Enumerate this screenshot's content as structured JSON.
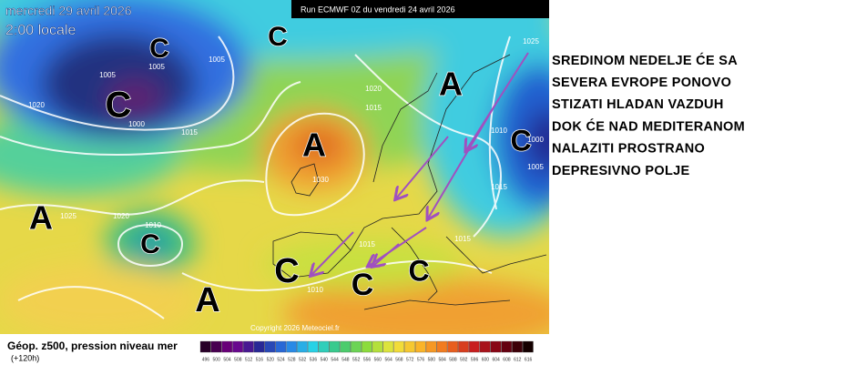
{
  "header": {
    "date": "mercredi 29 avril 2026",
    "time": "2:00 locale",
    "run": "Run ECMWF 0Z du vendredi 24 avril 2026"
  },
  "map": {
    "centers": [
      "C",
      "C",
      "C",
      "A",
      "A",
      "C",
      "A",
      "C",
      "C",
      "C",
      "C",
      "A"
    ],
    "isobar_labels": [
      "1005",
      "1005",
      "1005",
      "1020",
      "1000",
      "1015",
      "1020",
      "1015",
      "1030",
      "1025",
      "1020",
      "1010",
      "1015",
      "1015",
      "1015",
      "1010",
      "1000",
      "1005",
      "1025",
      "1010"
    ],
    "copyright": "Copyright 2026 Meteociel.fr"
  },
  "annotation": {
    "lines": [
      "SREDINOM NEDELJE ĆE SA",
      "SEVERA EVROPE PONOVO",
      "STIZATI HLADAN VAZDUH",
      "DOK ĆE NAD MEDITERANOM",
      "NALAZITI PROSTRANO",
      "DEPRESIVNO POLJE"
    ]
  },
  "legend": {
    "title": "Géop. z500, pression niveau mer",
    "lead": "(+120h)",
    "scale": [
      496,
      500,
      504,
      508,
      512,
      516,
      520,
      524,
      528,
      532,
      536,
      540,
      544,
      548,
      552,
      556,
      560,
      564,
      568,
      572,
      576,
      580,
      584,
      588,
      592,
      596,
      600,
      604,
      608,
      612,
      616
    ]
  }
}
